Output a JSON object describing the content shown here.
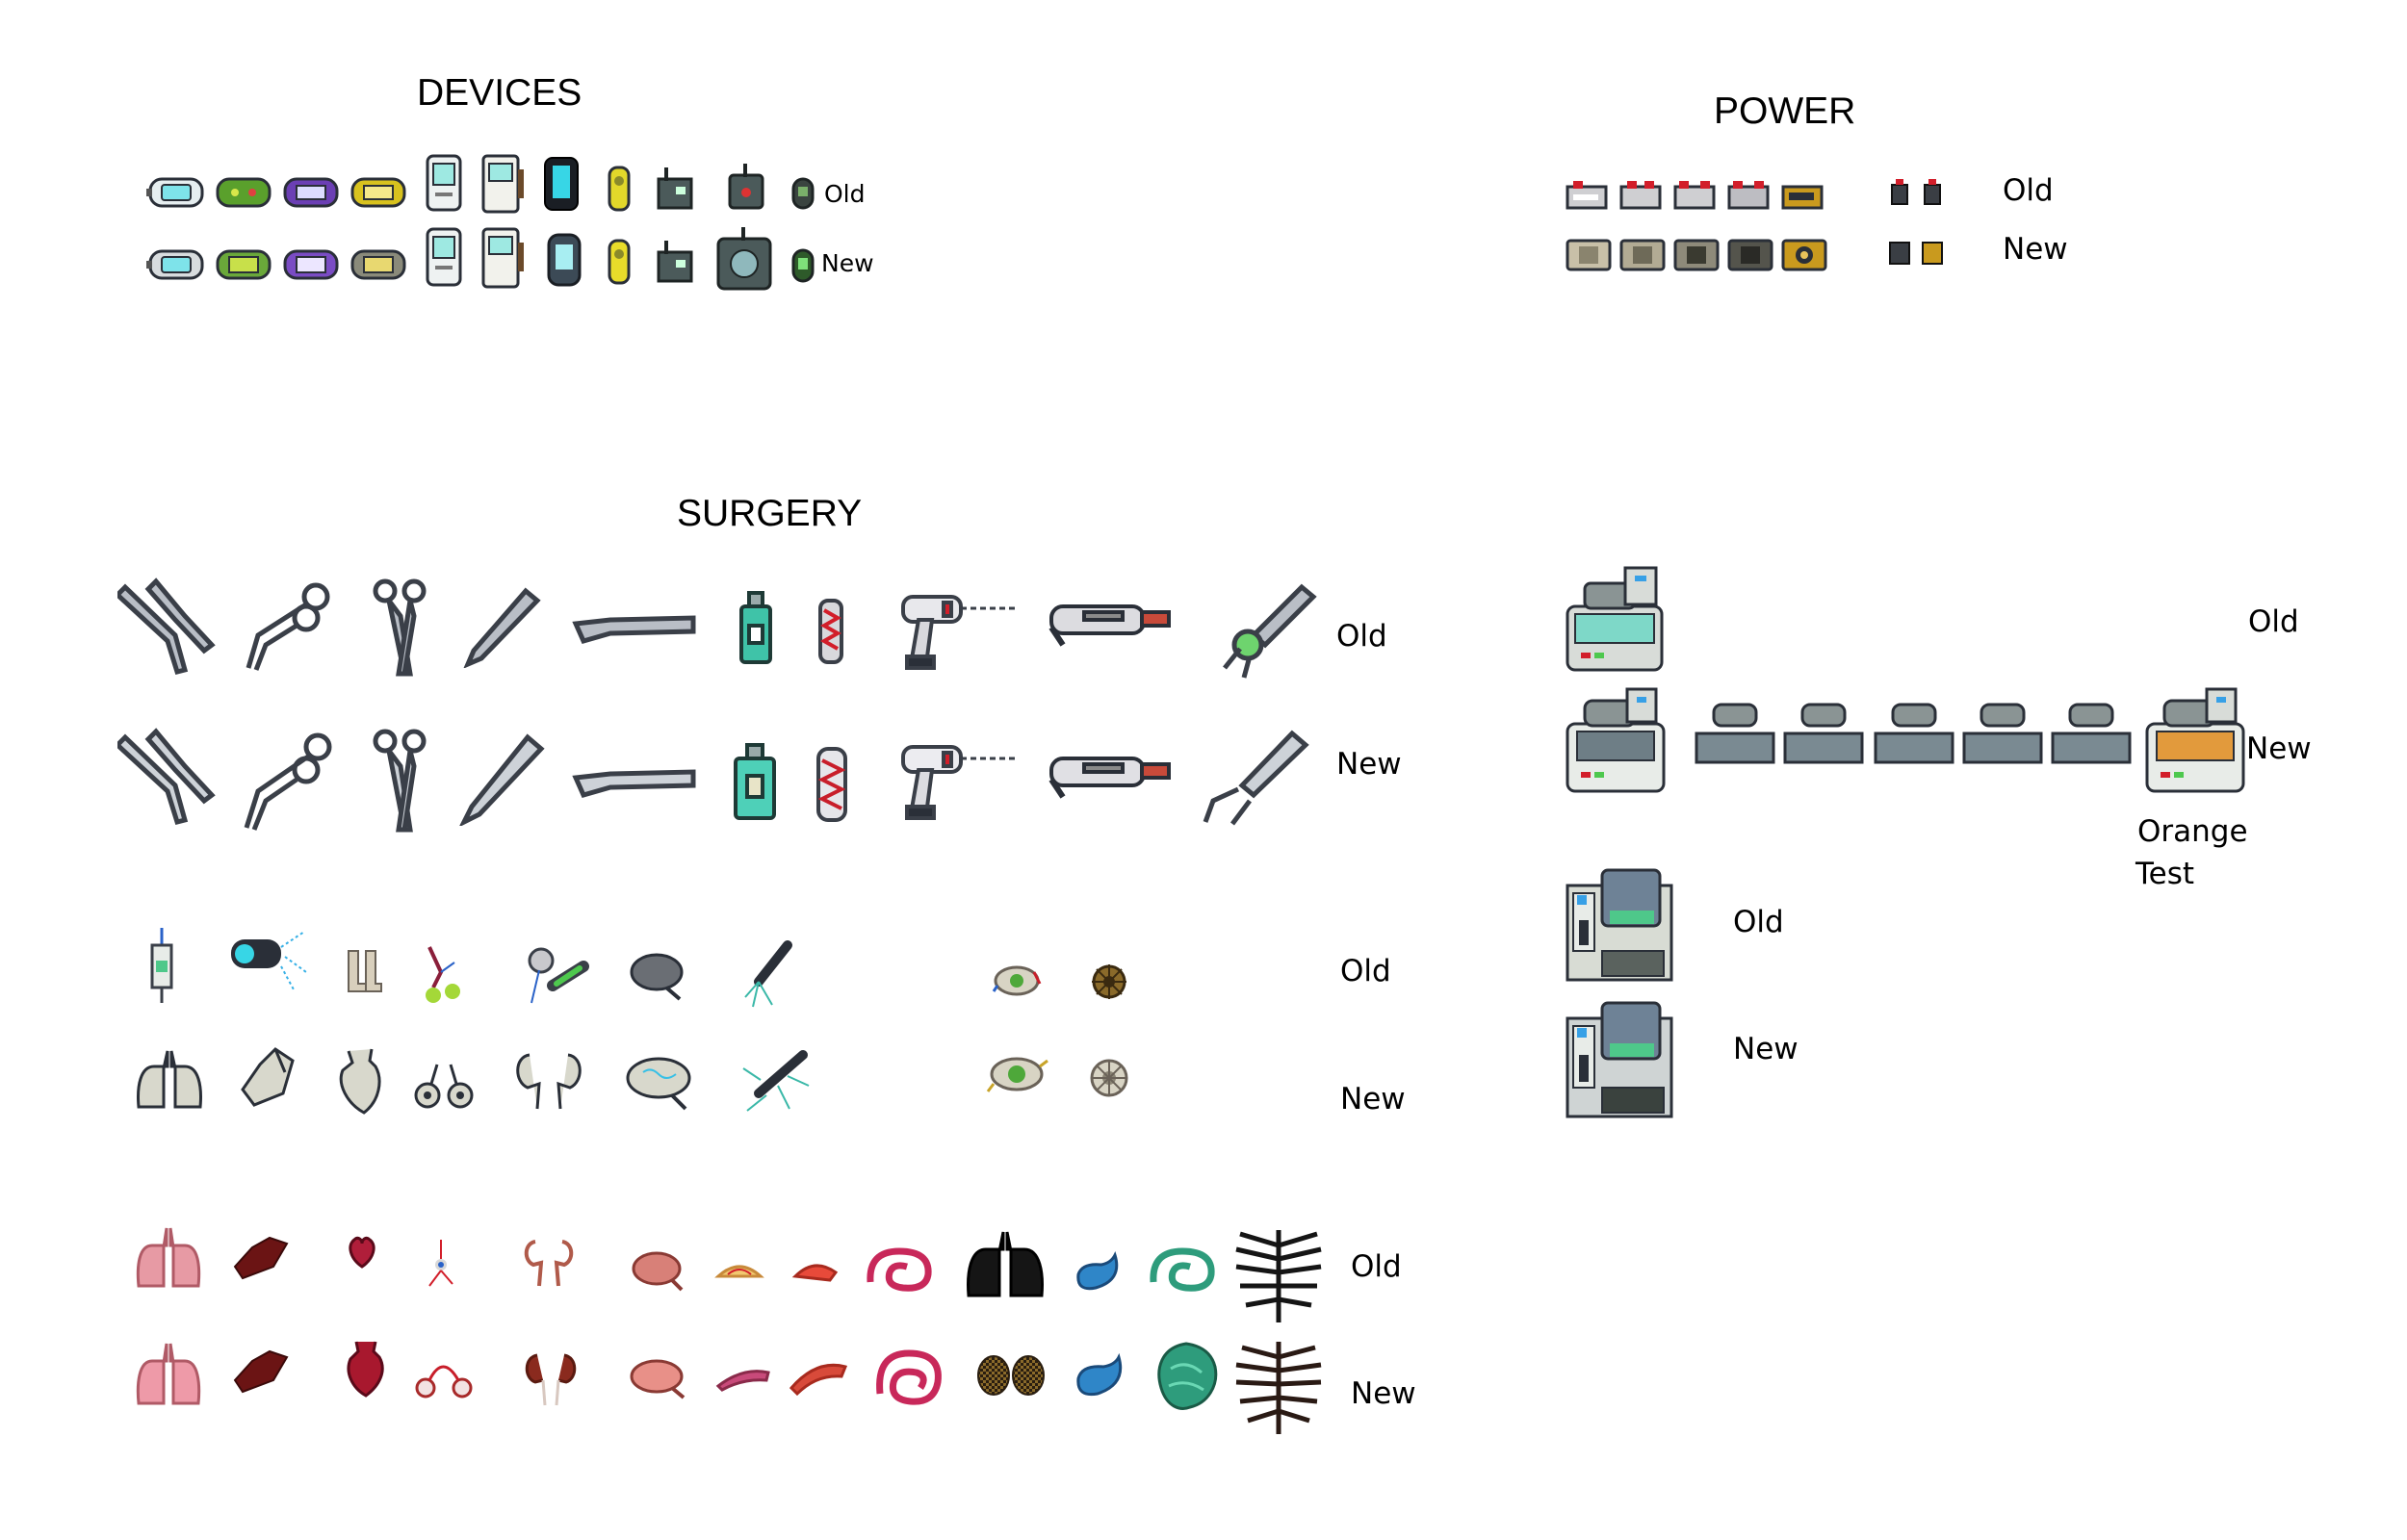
{
  "devices": {
    "title": "DEVICES",
    "old_label": "Old",
    "new_label": "New"
  },
  "power": {
    "title": "POWER",
    "old_label": "Old",
    "new_label": "New"
  },
  "surgery": {
    "title": "SURGERY",
    "tools_old_label": "Old",
    "tools_new_label": "New",
    "implants_old_label": "Old",
    "implants_new_label": "New",
    "organs_old_label": "Old",
    "organs_new_label": "New"
  },
  "machines": {
    "scanner_old_label": "Old",
    "scanner_new_label": "New",
    "orange_test_line1": "Orange",
    "orange_test_line2": "Test",
    "console_old_label": "Old",
    "console_new_label": "New"
  },
  "colors": {
    "device_green": "#5aa02c",
    "device_purple": "#6b3fb4",
    "device_yellow": "#d8c21e",
    "device_cyan": "#37d6e6",
    "power_red": "#d21e2a",
    "power_gold": "#c99a1e",
    "organ_pink": "#e79aa4",
    "organ_dark": "#6b1414",
    "organ_blue": "#2f86c8",
    "organ_teal": "#2e9c7c",
    "orange_test": "#e29a3c"
  }
}
